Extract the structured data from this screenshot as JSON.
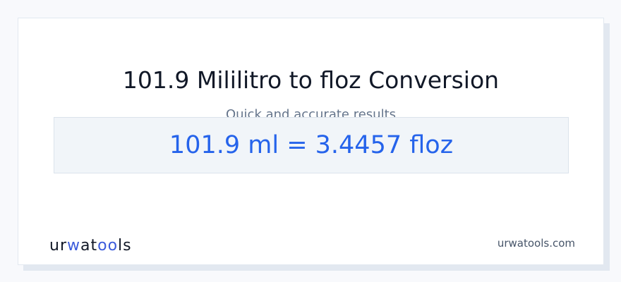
{
  "title": "101.9 Mililitro to floz Conversion",
  "subtitle": "Quick and accurate results",
  "result": "101.9 ml = 3.4457 floz",
  "logo": {
    "p1": "ur",
    "p2": "w",
    "p3": "at",
    "p4": "oo",
    "p5": "ls"
  },
  "site": "urwatools.com",
  "colors": {
    "accent": "#2563eb"
  }
}
